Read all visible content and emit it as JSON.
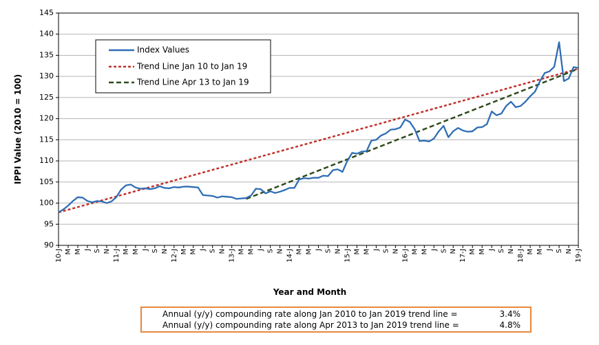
{
  "chart_data": {
    "type": "line",
    "ylabel": "IPPI Value (2010 = 100)",
    "xlabel": "Year and Month",
    "ylim": [
      90,
      145
    ],
    "yticks": [
      90,
      95,
      100,
      105,
      110,
      115,
      120,
      125,
      130,
      135,
      140,
      145
    ],
    "x_tick_labels": [
      "10-J",
      "M",
      "M",
      "J",
      "S",
      "N",
      "11-J",
      "M",
      "M",
      "J",
      "S",
      "N",
      "12-J",
      "M",
      "M",
      "J",
      "S",
      "N",
      "13-J",
      "M",
      "M",
      "J",
      "S",
      "N",
      "14-J",
      "M",
      "M",
      "J",
      "S",
      "N",
      "15-J",
      "M",
      "M",
      "J",
      "S",
      "N",
      "16-J",
      "M",
      "M",
      "J",
      "S",
      "N",
      "17-J",
      "M",
      "M",
      "J",
      "S",
      "N",
      "18-J",
      "M",
      "M",
      "J",
      "S",
      "N",
      "19-J"
    ],
    "grid": "horizontal",
    "legend_position": "top-left",
    "colors": {
      "index": "#2e6db4",
      "trend_2010": "#c0312b",
      "trend_2013": "#2f4a1b",
      "notes_border": "#e8873a"
    },
    "series": [
      {
        "name": "Index Values",
        "start": "2010-01",
        "values": [
          97.8,
          98.5,
          99.4,
          100.5,
          101.4,
          101.3,
          100.5,
          100.2,
          100.5,
          100.4,
          100.0,
          100.4,
          101.4,
          103.2,
          104.2,
          104.4,
          103.7,
          103.4,
          103.5,
          103.3,
          103.5,
          104.0,
          103.6,
          103.5,
          103.8,
          103.7,
          103.9,
          103.9,
          103.8,
          103.7,
          101.9,
          101.8,
          101.7,
          101.3,
          101.6,
          101.5,
          101.4,
          101.0,
          101.1,
          101.2,
          101.8,
          103.4,
          103.3,
          102.3,
          102.8,
          102.4,
          102.7,
          103.1,
          103.6,
          103.6,
          105.6,
          105.9,
          105.8,
          106.0,
          106.0,
          106.5,
          106.4,
          107.8,
          108.0,
          107.4,
          110.0,
          111.9,
          111.7,
          112.2,
          112.3,
          114.8,
          115.0,
          116.0,
          116.5,
          117.4,
          117.5,
          117.9,
          119.8,
          119.2,
          117.5,
          114.7,
          114.8,
          114.6,
          115.3,
          117.0,
          118.3,
          115.6,
          117.0,
          117.8,
          117.2,
          116.9,
          117.0,
          117.9,
          118.0,
          118.7,
          121.7,
          120.8,
          121.2,
          123.0,
          124.0,
          122.7,
          123.0,
          124.0,
          125.3,
          126.4,
          128.8,
          130.8,
          131.2,
          132.3,
          138.1,
          128.9,
          129.5,
          132.2,
          132.0
        ]
      },
      {
        "name": "Trend Line Jan 10 to Jan 19",
        "points": [
          {
            "date": "2010-01",
            "value": 97.8
          },
          {
            "date": "2019-01",
            "value": 131.8
          }
        ]
      },
      {
        "name": "Trend Line Apr 13 to Jan 19",
        "points": [
          {
            "date": "2013-04",
            "value": 101.0
          },
          {
            "date": "2019-01",
            "value": 131.8
          }
        ]
      }
    ]
  },
  "notes": [
    {
      "text": "Annual (y/y) compounding rate along Jan 2010 to Jan 2019 trend line =",
      "value": "3.4%"
    },
    {
      "text": "Annual (y/y) compounding rate along Apr 2013 to Jan 2019 trend line =",
      "value": "4.8%"
    }
  ]
}
